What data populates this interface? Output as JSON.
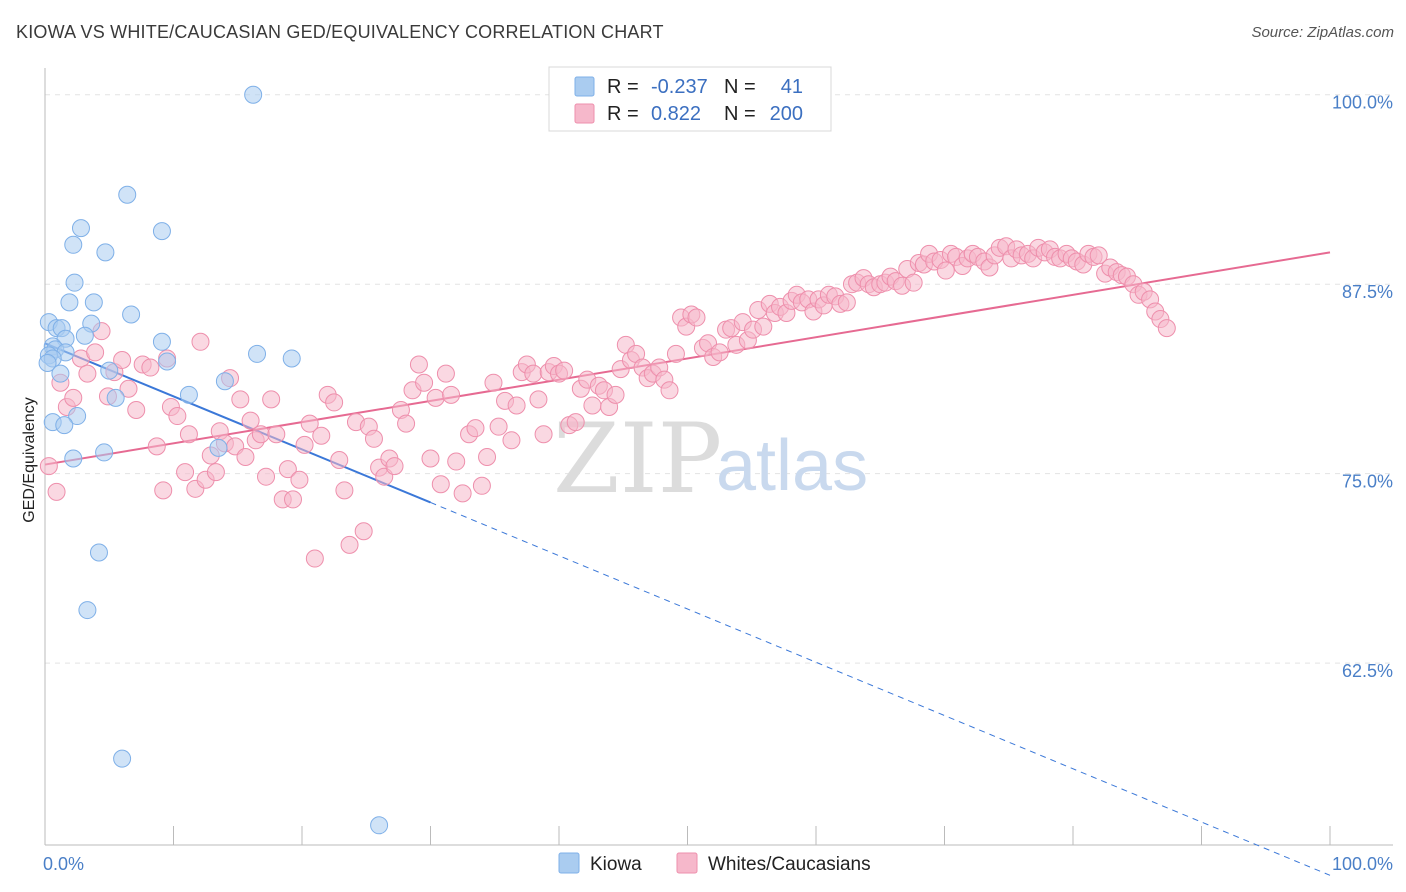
{
  "title": "KIOWA VS WHITE/CAUCASIAN GED/EQUIVALENCY CORRELATION CHART",
  "source": "Source: ZipAtlas.com",
  "watermark": {
    "zip": "ZIP",
    "atlas": "atlas"
  },
  "legend": {
    "rows": [
      {
        "r_label": "R =",
        "r_value": "-0.237",
        "n_label": "N =",
        "n_value": "41",
        "color": "#aaccf0"
      },
      {
        "r_label": "R =",
        "r_value": "0.822",
        "n_label": "N =",
        "n_value": "200",
        "color": "#f6b8cb"
      }
    ]
  },
  "bottom_legend": [
    {
      "label": "Kiowa",
      "color": "#aaccf0"
    },
    {
      "label": "Whites/Caucasians",
      "color": "#f6b8cb"
    }
  ],
  "chart_data": {
    "type": "scatter",
    "title": "KIOWA VS WHITE/CAUCASIAN GED/EQUIVALENCY CORRELATION CHART",
    "xlabel": "",
    "ylabel": "GED/Equivalency",
    "xlim": [
      0,
      100
    ],
    "ylim": [
      50.5,
      101.5
    ],
    "x_tick_labels": [
      "0.0%",
      "100.0%"
    ],
    "y_ticks": [
      62.5,
      75.0,
      87.5,
      100.0
    ],
    "y_tick_labels": [
      "62.5%",
      "75.0%",
      "87.5%",
      "100.0%"
    ],
    "grid": true,
    "series": [
      {
        "name": "Kiowa",
        "color": "#7fb0e8",
        "fill": "#aaccf0",
        "r": -0.237,
        "n": 41,
        "trend": {
          "x_start": 0,
          "y_start": 83.6,
          "x_solid_end": 30,
          "y_solid_end": 73.1,
          "x_end": 100,
          "y_end": 48.5
        },
        "points": [
          [
            16.2,
            100.0
          ],
          [
            6.4,
            93.4
          ],
          [
            2.8,
            91.2
          ],
          [
            9.1,
            91.0
          ],
          [
            2.2,
            90.1
          ],
          [
            4.7,
            89.6
          ],
          [
            2.3,
            87.6
          ],
          [
            1.9,
            86.3
          ],
          [
            3.8,
            86.3
          ],
          [
            6.7,
            85.5
          ],
          [
            0.3,
            85.0
          ],
          [
            3.6,
            84.9
          ],
          [
            0.9,
            84.6
          ],
          [
            1.3,
            84.6
          ],
          [
            3.1,
            84.1
          ],
          [
            1.6,
            83.9
          ],
          [
            9.1,
            83.7
          ],
          [
            0.6,
            83.4
          ],
          [
            0.8,
            83.2
          ],
          [
            1.6,
            83.0
          ],
          [
            0.3,
            82.8
          ],
          [
            0.6,
            82.6
          ],
          [
            16.5,
            82.9
          ],
          [
            19.2,
            82.6
          ],
          [
            9.5,
            82.4
          ],
          [
            0.2,
            82.3
          ],
          [
            5.0,
            81.8
          ],
          [
            1.2,
            81.6
          ],
          [
            14.0,
            81.1
          ],
          [
            11.2,
            80.2
          ],
          [
            5.5,
            80.0
          ],
          [
            2.5,
            78.8
          ],
          [
            0.6,
            78.4
          ],
          [
            1.5,
            78.2
          ],
          [
            4.6,
            76.4
          ],
          [
            13.5,
            76.7
          ],
          [
            2.2,
            76.0
          ],
          [
            4.2,
            69.8
          ],
          [
            3.3,
            66.0
          ],
          [
            6.0,
            56.2
          ],
          [
            26.0,
            51.8
          ]
        ]
      },
      {
        "name": "Whites/Caucasians",
        "color": "#ee8fac",
        "fill": "#f6b8cb",
        "r": 0.822,
        "n": 200,
        "trend": {
          "x_start": 0,
          "y_start": 75.6,
          "x_end": 100,
          "y_end": 89.6
        },
        "points": [
          [
            0.3,
            75.5
          ],
          [
            0.9,
            73.8
          ],
          [
            1.2,
            81.0
          ],
          [
            1.7,
            79.4
          ],
          [
            2.2,
            80.0
          ],
          [
            2.8,
            82.6
          ],
          [
            3.3,
            81.6
          ],
          [
            3.9,
            83.0
          ],
          [
            4.4,
            84.4
          ],
          [
            4.9,
            80.1
          ],
          [
            5.4,
            81.7
          ],
          [
            6.0,
            82.5
          ],
          [
            6.5,
            80.6
          ],
          [
            7.1,
            79.2
          ],
          [
            7.6,
            82.2
          ],
          [
            8.2,
            82.0
          ],
          [
            8.7,
            76.8
          ],
          [
            9.2,
            73.9
          ],
          [
            9.5,
            82.6
          ],
          [
            9.8,
            79.4
          ],
          [
            10.3,
            78.8
          ],
          [
            10.9,
            75.1
          ],
          [
            11.2,
            77.6
          ],
          [
            11.7,
            74.0
          ],
          [
            12.1,
            83.7
          ],
          [
            12.5,
            74.6
          ],
          [
            12.9,
            76.2
          ],
          [
            13.3,
            75.1
          ],
          [
            13.6,
            77.8
          ],
          [
            14.0,
            77.0
          ],
          [
            14.4,
            81.3
          ],
          [
            14.8,
            76.8
          ],
          [
            15.2,
            79.9
          ],
          [
            15.6,
            76.1
          ],
          [
            16.0,
            78.5
          ],
          [
            16.4,
            77.2
          ],
          [
            16.8,
            77.6
          ],
          [
            17.2,
            74.8
          ],
          [
            17.6,
            79.9
          ],
          [
            18.0,
            77.6
          ],
          [
            18.5,
            73.3
          ],
          [
            18.9,
            75.3
          ],
          [
            19.3,
            73.3
          ],
          [
            19.8,
            74.6
          ],
          [
            20.2,
            76.9
          ],
          [
            20.6,
            78.3
          ],
          [
            21.0,
            69.4
          ],
          [
            21.5,
            77.5
          ],
          [
            22.0,
            80.2
          ],
          [
            22.5,
            79.7
          ],
          [
            22.9,
            75.9
          ],
          [
            23.3,
            73.9
          ],
          [
            23.7,
            70.3
          ],
          [
            24.2,
            78.4
          ],
          [
            24.8,
            71.2
          ],
          [
            25.2,
            78.1
          ],
          [
            25.6,
            77.3
          ],
          [
            26.0,
            75.4
          ],
          [
            26.4,
            74.8
          ],
          [
            26.8,
            76.0
          ],
          [
            27.2,
            75.5
          ],
          [
            27.7,
            79.2
          ],
          [
            28.1,
            78.3
          ],
          [
            28.6,
            80.5
          ],
          [
            29.1,
            82.2
          ],
          [
            29.5,
            81.0
          ],
          [
            30.0,
            76.0
          ],
          [
            30.4,
            80.0
          ],
          [
            30.8,
            74.3
          ],
          [
            31.2,
            81.6
          ],
          [
            31.6,
            80.2
          ],
          [
            32.0,
            75.8
          ],
          [
            32.5,
            73.7
          ],
          [
            33.0,
            77.6
          ],
          [
            33.5,
            78.0
          ],
          [
            34.0,
            74.2
          ],
          [
            34.4,
            76.1
          ],
          [
            34.9,
            81.0
          ],
          [
            35.3,
            78.1
          ],
          [
            35.8,
            79.8
          ],
          [
            36.3,
            77.2
          ],
          [
            36.7,
            79.5
          ],
          [
            37.1,
            81.7
          ],
          [
            37.5,
            82.2
          ],
          [
            38.0,
            81.6
          ],
          [
            38.4,
            79.9
          ],
          [
            38.8,
            77.6
          ],
          [
            39.2,
            81.7
          ],
          [
            39.6,
            82.1
          ],
          [
            40.0,
            81.6
          ],
          [
            40.4,
            81.8
          ],
          [
            40.8,
            78.2
          ],
          [
            41.3,
            78.4
          ],
          [
            41.7,
            80.6
          ],
          [
            42.2,
            81.2
          ],
          [
            42.6,
            79.5
          ],
          [
            43.1,
            80.8
          ],
          [
            43.5,
            80.5
          ],
          [
            43.9,
            79.4
          ],
          [
            44.4,
            80.2
          ],
          [
            44.8,
            81.9
          ],
          [
            45.2,
            83.5
          ],
          [
            45.6,
            82.5
          ],
          [
            46.0,
            82.9
          ],
          [
            46.5,
            82.0
          ],
          [
            46.9,
            81.3
          ],
          [
            47.3,
            81.6
          ],
          [
            47.8,
            82.0
          ],
          [
            48.2,
            81.2
          ],
          [
            48.6,
            80.5
          ],
          [
            49.1,
            82.9
          ],
          [
            49.5,
            85.3
          ],
          [
            49.9,
            84.7
          ],
          [
            50.3,
            85.5
          ],
          [
            50.7,
            85.3
          ],
          [
            51.2,
            83.3
          ],
          [
            51.6,
            83.6
          ],
          [
            52.0,
            82.7
          ],
          [
            52.5,
            83.0
          ],
          [
            53.0,
            84.5
          ],
          [
            53.4,
            84.6
          ],
          [
            53.8,
            83.5
          ],
          [
            54.3,
            85.0
          ],
          [
            54.7,
            83.8
          ],
          [
            55.1,
            84.5
          ],
          [
            55.5,
            85.8
          ],
          [
            55.9,
            84.7
          ],
          [
            56.4,
            86.2
          ],
          [
            56.8,
            85.6
          ],
          [
            57.2,
            86.0
          ],
          [
            57.7,
            85.6
          ],
          [
            58.1,
            86.4
          ],
          [
            58.5,
            86.8
          ],
          [
            58.9,
            86.3
          ],
          [
            59.4,
            86.5
          ],
          [
            59.8,
            85.7
          ],
          [
            60.2,
            86.5
          ],
          [
            60.6,
            86.1
          ],
          [
            61.0,
            86.8
          ],
          [
            61.5,
            86.7
          ],
          [
            61.9,
            86.2
          ],
          [
            62.4,
            86.3
          ],
          [
            62.8,
            87.5
          ],
          [
            63.2,
            87.6
          ],
          [
            63.7,
            87.9
          ],
          [
            64.1,
            87.5
          ],
          [
            64.5,
            87.3
          ],
          [
            65.0,
            87.5
          ],
          [
            65.4,
            87.6
          ],
          [
            65.8,
            88.0
          ],
          [
            66.2,
            87.7
          ],
          [
            66.7,
            87.4
          ],
          [
            67.1,
            88.5
          ],
          [
            67.6,
            87.6
          ],
          [
            68.0,
            88.9
          ],
          [
            68.4,
            88.8
          ],
          [
            68.8,
            89.5
          ],
          [
            69.2,
            89.0
          ],
          [
            69.7,
            89.1
          ],
          [
            70.1,
            88.4
          ],
          [
            70.5,
            89.5
          ],
          [
            70.9,
            89.3
          ],
          [
            71.4,
            88.7
          ],
          [
            71.8,
            89.2
          ],
          [
            72.2,
            89.5
          ],
          [
            72.6,
            89.3
          ],
          [
            73.1,
            89.0
          ],
          [
            73.5,
            88.6
          ],
          [
            73.9,
            89.4
          ],
          [
            74.3,
            89.9
          ],
          [
            74.8,
            90.0
          ],
          [
            75.2,
            89.2
          ],
          [
            75.6,
            89.8
          ],
          [
            76.0,
            89.4
          ],
          [
            76.5,
            89.5
          ],
          [
            76.9,
            89.2
          ],
          [
            77.3,
            89.9
          ],
          [
            77.8,
            89.6
          ],
          [
            78.2,
            89.8
          ],
          [
            78.6,
            89.3
          ],
          [
            79.0,
            89.2
          ],
          [
            79.5,
            89.5
          ],
          [
            79.9,
            89.2
          ],
          [
            80.3,
            89.0
          ],
          [
            80.8,
            88.8
          ],
          [
            81.2,
            89.5
          ],
          [
            81.6,
            89.3
          ],
          [
            82.0,
            89.4
          ],
          [
            82.5,
            88.2
          ],
          [
            82.9,
            88.6
          ],
          [
            83.4,
            88.3
          ],
          [
            83.8,
            88.1
          ],
          [
            84.2,
            88.0
          ],
          [
            84.7,
            87.5
          ],
          [
            85.1,
            86.8
          ],
          [
            85.5,
            87.0
          ],
          [
            86.0,
            86.5
          ],
          [
            86.4,
            85.7
          ],
          [
            86.8,
            85.2
          ],
          [
            87.3,
            84.6
          ]
        ]
      }
    ]
  }
}
